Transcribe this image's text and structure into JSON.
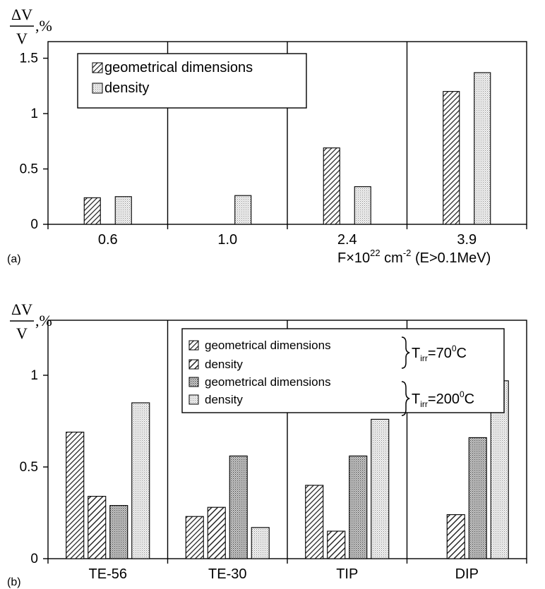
{
  "chart_data": [
    {
      "type": "bar",
      "panel_label": "(a)",
      "y_label_top": "ΔV",
      "y_label_bottom": "V",
      "y_label_unit": ",%",
      "x_label_main": "F×10",
      "x_label_exp": "22",
      "x_label_unit": " cm",
      "x_label_unit_exp": "-2",
      "x_label_tail": " (E>0.1MeV)",
      "categories": [
        "0.6",
        "1.0",
        "2.4",
        "3.9"
      ],
      "ylim": [
        0,
        1.65
      ],
      "yticks": [
        "0",
        "0.5",
        "1",
        "1.5"
      ],
      "ytick_values": [
        0,
        0.5,
        1,
        1.5
      ],
      "legend_placement": "top-left",
      "series": [
        {
          "name": "geometrical dimensions",
          "pattern": "hatch-dense",
          "values": [
            0.24,
            null,
            0.69,
            1.2
          ]
        },
        {
          "name": "density",
          "pattern": "dots-light",
          "values": [
            0.25,
            0.26,
            0.34,
            1.37
          ]
        }
      ]
    },
    {
      "type": "bar",
      "panel_label": "(b)",
      "y_label_top": "ΔV",
      "y_label_bottom": "V",
      "y_label_unit": ",%",
      "categories": [
        "TE-56",
        "TE-30",
        "TIP",
        "DIP"
      ],
      "ylim": [
        0,
        1.3
      ],
      "yticks": [
        "0",
        "0.5",
        "1"
      ],
      "ytick_values": [
        0,
        0.5,
        1
      ],
      "legend_placement": "top-center",
      "groups": [
        {
          "label": "T",
          "sub": "irr",
          "eq": "=70",
          "sup": "0",
          "unit": "C"
        },
        {
          "label": "T",
          "sub": "irr",
          "eq": "=200",
          "sup": "0",
          "unit": "C"
        }
      ],
      "series": [
        {
          "name": "geometrical dimensions",
          "pattern": "hatch-dense",
          "values": [
            0.69,
            0.23,
            0.4,
            null
          ]
        },
        {
          "name": "density",
          "pattern": "hatch-sparse",
          "values": [
            0.34,
            0.28,
            0.15,
            0.24
          ]
        },
        {
          "name": "geometrical dimensions",
          "pattern": "dots-medium",
          "values": [
            0.29,
            0.56,
            0.56,
            0.66
          ]
        },
        {
          "name": "density",
          "pattern": "dots-light",
          "values": [
            0.85,
            0.17,
            0.76,
            0.97
          ]
        }
      ]
    }
  ]
}
